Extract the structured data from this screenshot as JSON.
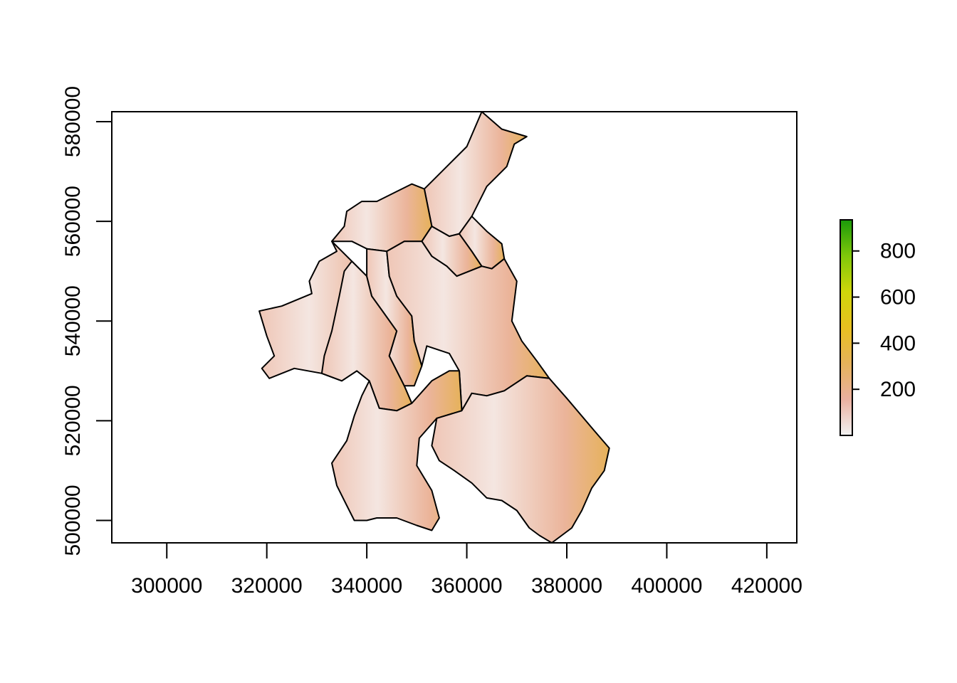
{
  "chart_data": {
    "type": "heatmap",
    "title": "",
    "xlabel": "",
    "ylabel": "",
    "xlim": [
      289000,
      426000
    ],
    "ylim": [
      495500,
      582000
    ],
    "x_ticks": [
      "300000",
      "320000",
      "340000",
      "360000",
      "380000",
      "400000",
      "420000"
    ],
    "y_ticks": [
      "500000",
      "520000",
      "540000",
      "560000",
      "580000"
    ],
    "legend": {
      "placement": "right",
      "range": [
        0,
        935
      ],
      "ticks": [
        "200",
        "400",
        "600",
        "800"
      ],
      "colors": [
        "#f2f2f2",
        "#eab0a0",
        "#e6b25a",
        "#e8c020",
        "#cfd60a",
        "#7fc80a",
        "#1a9a0a"
      ]
    },
    "regions": [
      {
        "id": "north",
        "outline": [
          [
            363000,
            582000
          ],
          [
            367000,
            578500
          ],
          [
            372000,
            577000
          ],
          [
            369500,
            575500
          ],
          [
            368000,
            571000
          ],
          [
            364000,
            567000
          ],
          [
            361000,
            561000
          ],
          [
            358500,
            557500
          ],
          [
            356500,
            557000
          ],
          [
            353000,
            559000
          ],
          [
            351500,
            566500
          ],
          [
            355500,
            570500
          ],
          [
            360000,
            575000
          ],
          [
            363000,
            582000
          ]
        ]
      },
      {
        "id": "north-west",
        "outline": [
          [
            351500,
            566500
          ],
          [
            353000,
            559000
          ],
          [
            351000,
            556000
          ],
          [
            347500,
            556000
          ],
          [
            344000,
            554000
          ],
          [
            340000,
            554500
          ],
          [
            337000,
            556000
          ],
          [
            333000,
            556000
          ],
          [
            335500,
            559000
          ],
          [
            336000,
            562000
          ],
          [
            339000,
            564000
          ],
          [
            342000,
            564000
          ],
          [
            346000,
            566000
          ],
          [
            349000,
            567500
          ],
          [
            351500,
            566500
          ]
        ]
      },
      {
        "id": "north-centre",
        "outline": [
          [
            353000,
            559000
          ],
          [
            356500,
            557000
          ],
          [
            358500,
            557500
          ],
          [
            361000,
            554000
          ],
          [
            363000,
            551000
          ],
          [
            358000,
            549000
          ],
          [
            356000,
            551000
          ],
          [
            353000,
            553000
          ],
          [
            351000,
            556000
          ],
          [
            353000,
            559000
          ]
        ]
      },
      {
        "id": "east-slope",
        "outline": [
          [
            361000,
            561000
          ],
          [
            364000,
            558000
          ],
          [
            367000,
            555500
          ],
          [
            367500,
            552500
          ],
          [
            365000,
            550500
          ],
          [
            363000,
            551000
          ],
          [
            361000,
            554000
          ],
          [
            358500,
            557500
          ],
          [
            361000,
            561000
          ]
        ]
      },
      {
        "id": "west",
        "outline": [
          [
            333000,
            556000
          ],
          [
            334000,
            554000
          ],
          [
            330500,
            552000
          ],
          [
            328500,
            548000
          ],
          [
            329000,
            545500
          ],
          [
            323000,
            543000
          ],
          [
            318500,
            542000
          ],
          [
            320000,
            537000
          ],
          [
            321500,
            533000
          ],
          [
            319000,
            530500
          ],
          [
            320500,
            528500
          ],
          [
            325500,
            530500
          ],
          [
            331000,
            529500
          ],
          [
            335000,
            528000
          ],
          [
            338000,
            530000
          ],
          [
            340500,
            533000
          ],
          [
            344000,
            532500
          ],
          [
            347000,
            534000
          ],
          [
            346000,
            538000
          ],
          [
            343500,
            541500
          ],
          [
            341000,
            545000
          ],
          [
            340000,
            549000
          ],
          [
            337000,
            552000
          ],
          [
            333000,
            556000
          ]
        ]
      },
      {
        "id": "west-centre",
        "outline": [
          [
            337000,
            552000
          ],
          [
            340000,
            549000
          ],
          [
            341000,
            545000
          ],
          [
            343500,
            541500
          ],
          [
            346000,
            538000
          ],
          [
            344500,
            533000
          ],
          [
            347500,
            527000
          ],
          [
            349000,
            523500
          ],
          [
            346000,
            522000
          ],
          [
            342500,
            522500
          ],
          [
            340500,
            528000
          ],
          [
            338000,
            530000
          ],
          [
            335000,
            528000
          ],
          [
            331000,
            529500
          ],
          [
            331500,
            533000
          ],
          [
            333000,
            538000
          ],
          [
            334500,
            545000
          ],
          [
            335500,
            550000
          ],
          [
            337000,
            552000
          ]
        ]
      },
      {
        "id": "centre-west",
        "outline": [
          [
            340000,
            554500
          ],
          [
            344000,
            554000
          ],
          [
            344500,
            549000
          ],
          [
            346000,
            545000
          ],
          [
            349000,
            541000
          ],
          [
            349500,
            536000
          ],
          [
            351000,
            531000
          ],
          [
            349500,
            527000
          ],
          [
            347500,
            527000
          ],
          [
            344500,
            533000
          ],
          [
            346000,
            538000
          ],
          [
            343500,
            541500
          ],
          [
            341000,
            545000
          ],
          [
            340000,
            549000
          ],
          [
            340000,
            554500
          ]
        ]
      },
      {
        "id": "centre",
        "outline": [
          [
            344000,
            554000
          ],
          [
            347500,
            556000
          ],
          [
            351000,
            556000
          ],
          [
            353000,
            553000
          ],
          [
            356000,
            551000
          ],
          [
            358000,
            549000
          ],
          [
            363000,
            551000
          ],
          [
            365000,
            550500
          ],
          [
            367500,
            552500
          ],
          [
            370000,
            548000
          ],
          [
            369000,
            540000
          ],
          [
            371000,
            536000
          ],
          [
            374000,
            532000
          ],
          [
            376500,
            528500
          ],
          [
            372000,
            529000
          ],
          [
            367500,
            526000
          ],
          [
            364000,
            525000
          ],
          [
            361000,
            525500
          ],
          [
            359000,
            522000
          ],
          [
            358500,
            530000
          ],
          [
            356500,
            533500
          ],
          [
            352000,
            535000
          ],
          [
            351000,
            531000
          ],
          [
            349500,
            536000
          ],
          [
            349000,
            541000
          ],
          [
            346000,
            545000
          ],
          [
            344500,
            549000
          ],
          [
            344000,
            554000
          ]
        ]
      },
      {
        "id": "south-west",
        "outline": [
          [
            340500,
            528000
          ],
          [
            342500,
            522500
          ],
          [
            346000,
            522000
          ],
          [
            349000,
            523500
          ],
          [
            353000,
            528000
          ],
          [
            356500,
            530000
          ],
          [
            358500,
            530000
          ],
          [
            359000,
            522000
          ],
          [
            354000,
            520500
          ],
          [
            350500,
            516500
          ],
          [
            350000,
            511000
          ],
          [
            353000,
            506000
          ],
          [
            354500,
            500500
          ],
          [
            353000,
            498000
          ],
          [
            350000,
            499000
          ],
          [
            346000,
            500500
          ],
          [
            342000,
            500500
          ],
          [
            340000,
            500000
          ],
          [
            337500,
            500000
          ],
          [
            336000,
            503000
          ],
          [
            334000,
            507000
          ],
          [
            333000,
            511500
          ],
          [
            336000,
            516000
          ],
          [
            337500,
            521000
          ],
          [
            339000,
            525000
          ],
          [
            340500,
            528000
          ]
        ]
      },
      {
        "id": "south-east",
        "outline": [
          [
            359000,
            522000
          ],
          [
            361000,
            525500
          ],
          [
            364000,
            525000
          ],
          [
            367500,
            526000
          ],
          [
            372000,
            529000
          ],
          [
            376500,
            528500
          ],
          [
            380000,
            524500
          ],
          [
            385500,
            518000
          ],
          [
            388500,
            514500
          ],
          [
            387500,
            510000
          ],
          [
            385000,
            506500
          ],
          [
            383000,
            502000
          ],
          [
            381000,
            498500
          ],
          [
            377000,
            495500
          ],
          [
            374500,
            497000
          ],
          [
            372500,
            498500
          ],
          [
            370000,
            502000
          ],
          [
            367000,
            504000
          ],
          [
            364000,
            504500
          ],
          [
            361000,
            507500
          ],
          [
            357500,
            510000
          ],
          [
            354500,
            512000
          ],
          [
            353000,
            515000
          ],
          [
            354000,
            520500
          ],
          [
            359000,
            522000
          ]
        ]
      }
    ]
  }
}
